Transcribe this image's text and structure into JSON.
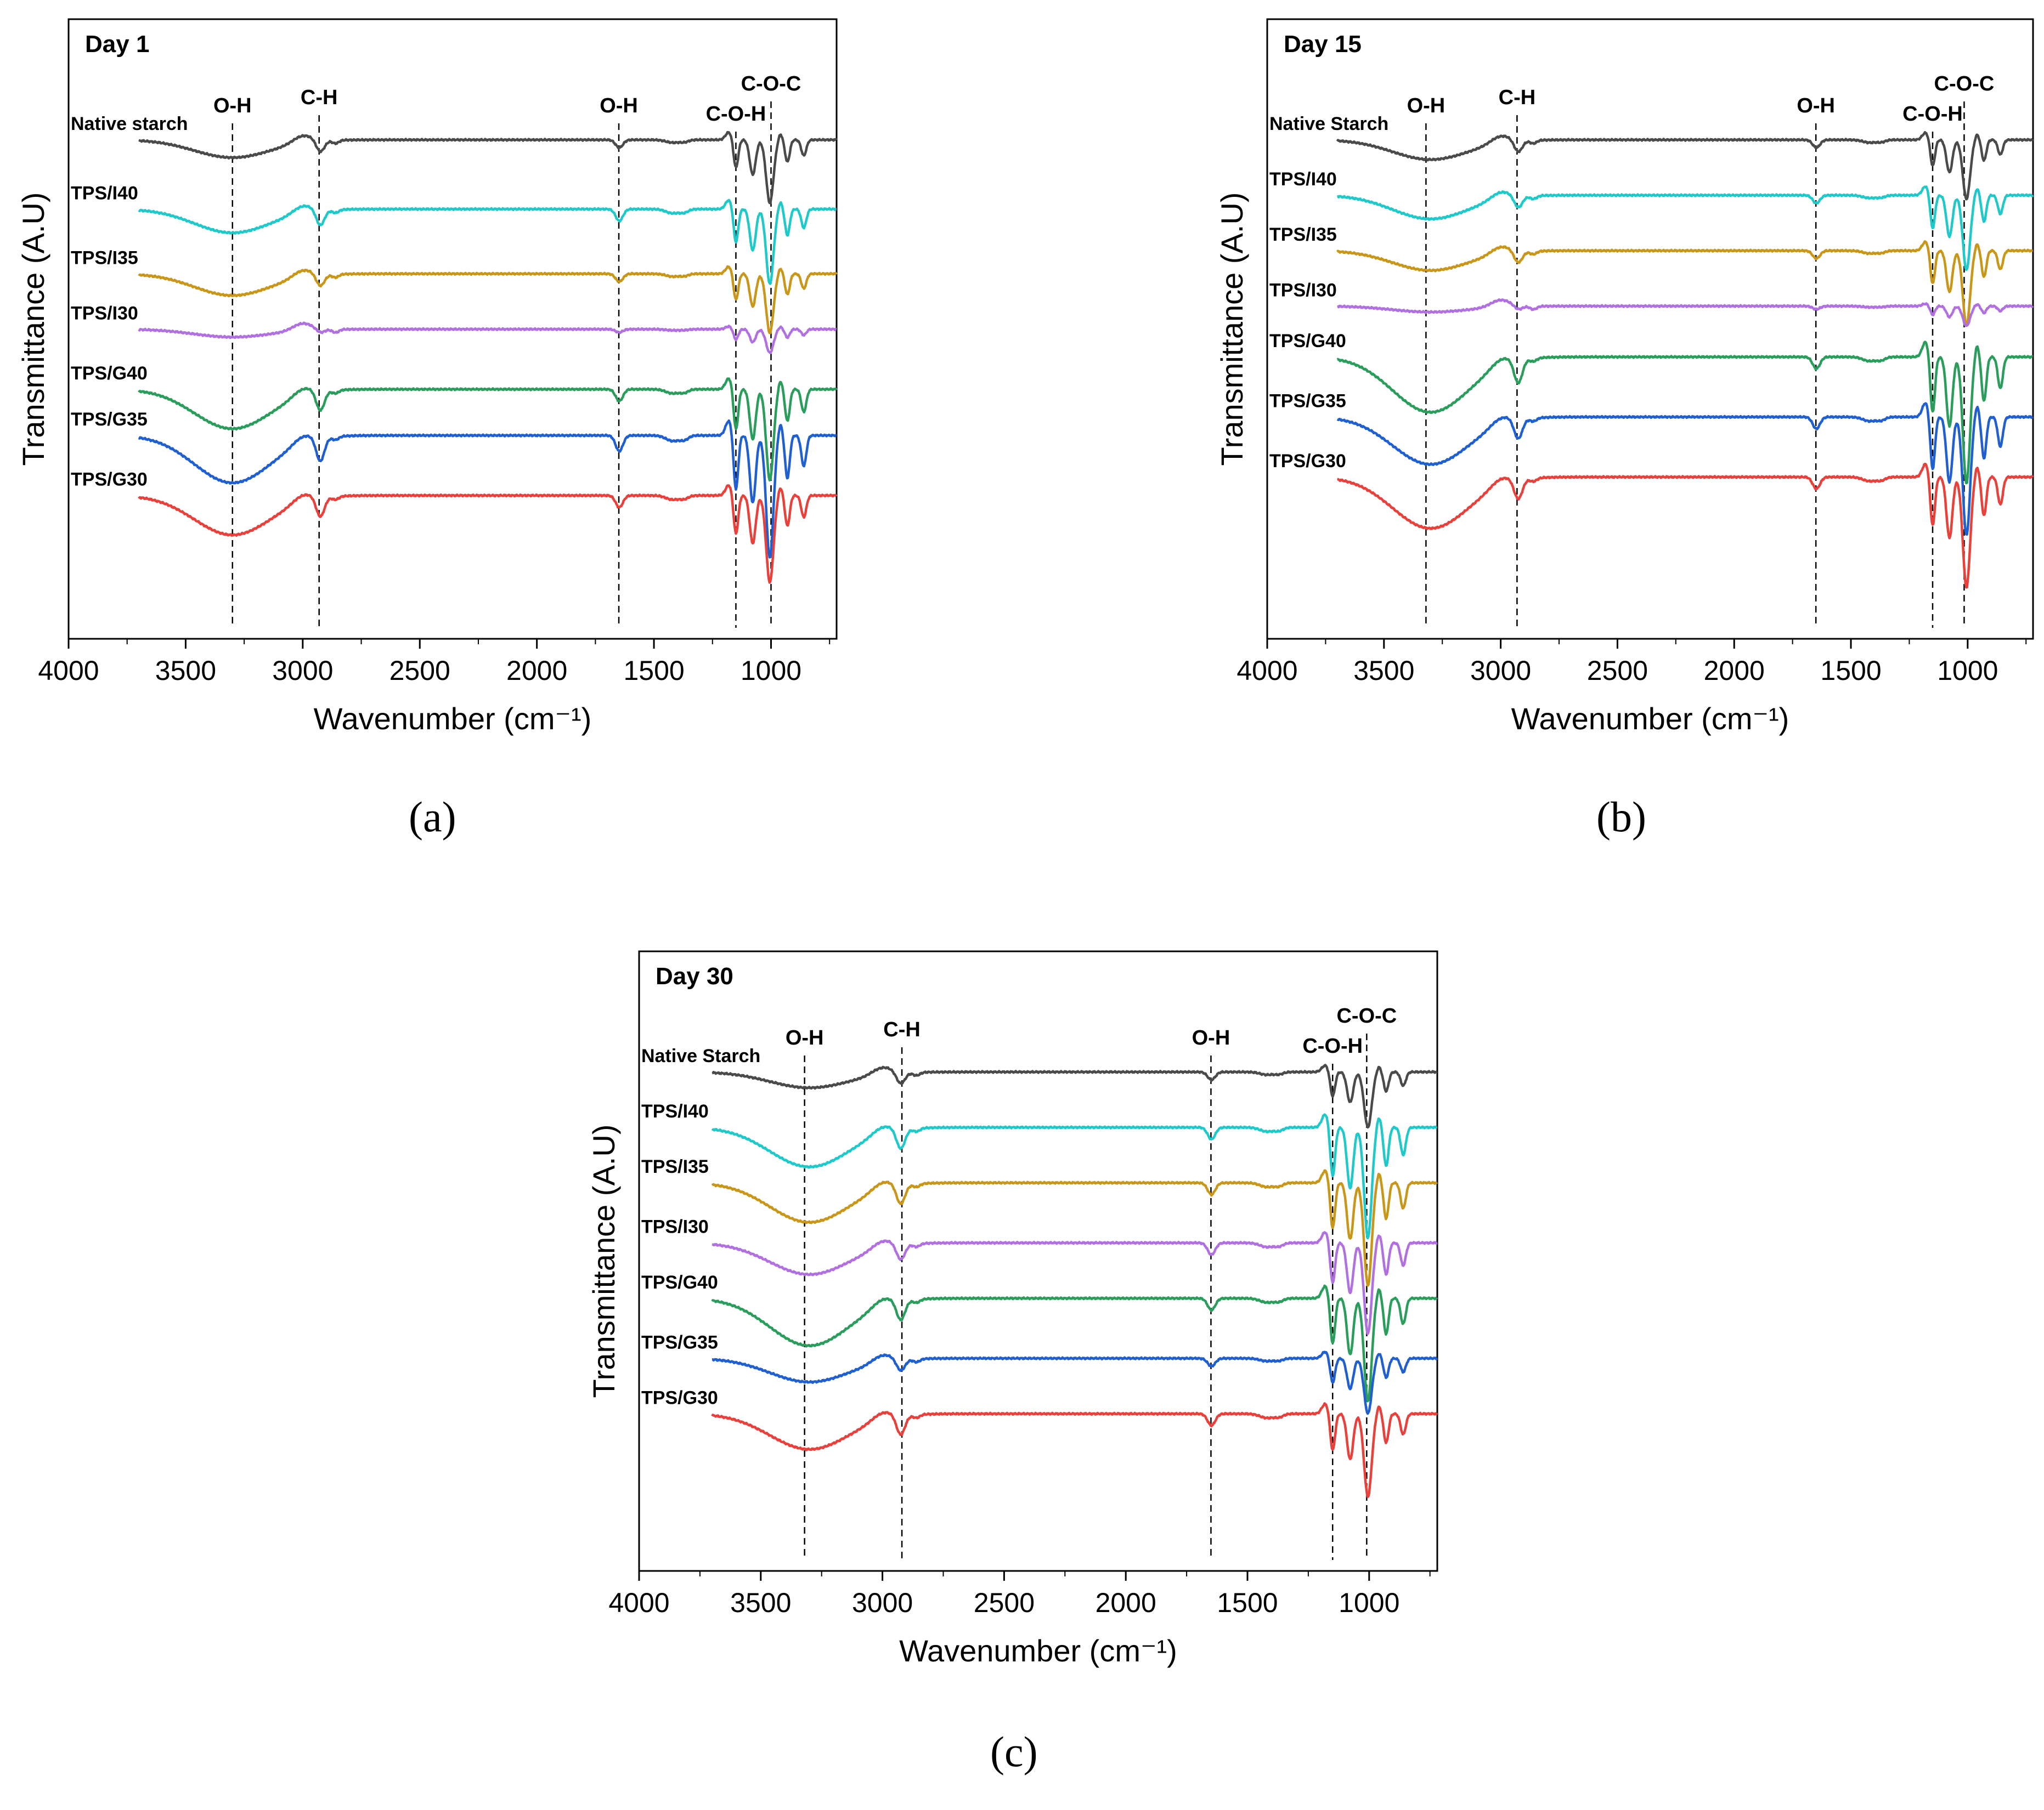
{
  "figure": {
    "panel_labels": [
      "(a)",
      "(b)",
      "(c)"
    ]
  },
  "chart_data": [
    {
      "type": "line",
      "title": "Day 1",
      "xlabel": "Wavenumber (cm⁻¹)",
      "ylabel": "Transmittance (A.U)",
      "xlim": [
        4000,
        720
      ],
      "xticks": [
        4000,
        3500,
        3000,
        2500,
        2000,
        1500,
        1000
      ],
      "annotations": [
        {
          "label": "O-H",
          "x": 3300
        },
        {
          "label": "C-H",
          "x": 2930
        },
        {
          "label": "O-H",
          "x": 1650
        },
        {
          "label": "C-O-H",
          "x": 1150
        },
        {
          "label": "C-O-C",
          "x": 1000
        }
      ],
      "series": [
        {
          "name": "Native starch",
          "color": "#4a4a4a",
          "offset": 0.0,
          "depths": {
            "oh": 0.45,
            "ch": 0.3,
            "oh2": 0.2,
            "fp": 1.6
          }
        },
        {
          "name": "TPS/I40",
          "color": "#1fc9c9",
          "offset": 1.5,
          "depths": {
            "oh": 0.6,
            "ch": 0.4,
            "oh2": 0.3,
            "fp": 1.9
          }
        },
        {
          "name": "TPS/I35",
          "color": "#c8971a",
          "offset": 2.9,
          "depths": {
            "oh": 0.55,
            "ch": 0.3,
            "oh2": 0.2,
            "fp": 1.5
          }
        },
        {
          "name": "TPS/I30",
          "color": "#b070e0",
          "offset": 4.1,
          "depths": {
            "oh": 0.2,
            "ch": 0.1,
            "oh2": 0.08,
            "fp": 0.6
          }
        },
        {
          "name": "TPS/G40",
          "color": "#2a9d5c",
          "offset": 5.4,
          "depths": {
            "oh": 1.0,
            "ch": 0.5,
            "oh2": 0.3,
            "fp": 2.3
          }
        },
        {
          "name": "TPS/G35",
          "color": "#1f5fd0",
          "offset": 6.4,
          "depths": {
            "oh": 1.2,
            "ch": 0.6,
            "oh2": 0.4,
            "fp": 3.1
          }
        },
        {
          "name": "TPS/G30",
          "color": "#e8413c",
          "offset": 7.7,
          "depths": {
            "oh": 1.0,
            "ch": 0.5,
            "oh2": 0.3,
            "fp": 2.2
          }
        }
      ]
    },
    {
      "type": "line",
      "title": "Day 15",
      "xlabel": "Wavenumber (cm⁻¹)",
      "ylabel": "Transmittance (A.U)",
      "xlim": [
        4000,
        720
      ],
      "xticks": [
        4000,
        3500,
        3000,
        2500,
        2000,
        1500,
        1000
      ],
      "annotations": [
        {
          "label": "O-H",
          "x": 3320
        },
        {
          "label": "C-H",
          "x": 2930
        },
        {
          "label": "O-H",
          "x": 1650
        },
        {
          "label": "C-O-H",
          "x": 1150
        },
        {
          "label": "C-O-C",
          "x": 1015
        }
      ],
      "series": [
        {
          "name": "Native Starch",
          "color": "#4a4a4a",
          "offset": 0.0,
          "depths": {
            "oh": 0.5,
            "ch": 0.3,
            "oh2": 0.2,
            "fp": 1.5
          }
        },
        {
          "name": "TPS/I40",
          "color": "#1fc9c9",
          "offset": 1.2,
          "depths": {
            "oh": 0.6,
            "ch": 0.3,
            "oh2": 0.2,
            "fp": 1.9
          }
        },
        {
          "name": "TPS/I35",
          "color": "#c8971a",
          "offset": 2.4,
          "depths": {
            "oh": 0.5,
            "ch": 0.3,
            "oh2": 0.2,
            "fp": 1.9
          }
        },
        {
          "name": "TPS/I30",
          "color": "#b070e0",
          "offset": 3.6,
          "depths": {
            "oh": 0.15,
            "ch": 0.1,
            "oh2": 0.08,
            "fp": 0.5
          }
        },
        {
          "name": "TPS/G40",
          "color": "#2a9d5c",
          "offset": 4.7,
          "depths": {
            "oh": 1.4,
            "ch": 0.6,
            "oh2": 0.3,
            "fp": 3.2
          }
        },
        {
          "name": "TPS/G35",
          "color": "#1f5fd0",
          "offset": 6.0,
          "depths": {
            "oh": 1.2,
            "ch": 0.5,
            "oh2": 0.3,
            "fp": 3.0
          }
        },
        {
          "name": "TPS/G30",
          "color": "#e8413c",
          "offset": 7.3,
          "depths": {
            "oh": 1.3,
            "ch": 0.5,
            "oh2": 0.3,
            "fp": 2.8
          }
        }
      ]
    },
    {
      "type": "line",
      "title": "Day 30",
      "xlabel": "Wavenumber (cm⁻¹)",
      "ylabel": "Transmittance (A.U)",
      "xlim": [
        4000,
        720
      ],
      "xticks": [
        4000,
        3500,
        3000,
        2500,
        2000,
        1500,
        1000
      ],
      "annotations": [
        {
          "label": "O-H",
          "x": 3320
        },
        {
          "label": "C-H",
          "x": 2920
        },
        {
          "label": "O-H",
          "x": 1650
        },
        {
          "label": "C-O-H",
          "x": 1150
        },
        {
          "label": "C-O-C",
          "x": 1010
        }
      ],
      "series": [
        {
          "name": "Native Starch",
          "color": "#4a4a4a",
          "offset": 0.0,
          "depths": {
            "oh": 0.4,
            "ch": 0.3,
            "oh2": 0.2,
            "fp": 1.4
          }
        },
        {
          "name": "TPS/I40",
          "color": "#1fc9c9",
          "offset": 1.2,
          "depths": {
            "oh": 1.0,
            "ch": 0.5,
            "oh2": 0.3,
            "fp": 2.8
          }
        },
        {
          "name": "TPS/I35",
          "color": "#c8971a",
          "offset": 2.4,
          "depths": {
            "oh": 1.0,
            "ch": 0.5,
            "oh2": 0.3,
            "fp": 2.6
          }
        },
        {
          "name": "TPS/I30",
          "color": "#b070e0",
          "offset": 3.7,
          "depths": {
            "oh": 0.8,
            "ch": 0.4,
            "oh2": 0.3,
            "fp": 2.3
          }
        },
        {
          "name": "TPS/G40",
          "color": "#2a9d5c",
          "offset": 4.9,
          "depths": {
            "oh": 1.2,
            "ch": 0.5,
            "oh2": 0.3,
            "fp": 2.6
          }
        },
        {
          "name": "TPS/G35",
          "color": "#1f5fd0",
          "offset": 6.2,
          "depths": {
            "oh": 0.6,
            "ch": 0.3,
            "oh2": 0.2,
            "fp": 1.4
          }
        },
        {
          "name": "TPS/G30",
          "color": "#e8413c",
          "offset": 7.4,
          "depths": {
            "oh": 0.9,
            "ch": 0.5,
            "oh2": 0.3,
            "fp": 2.1
          }
        }
      ]
    }
  ]
}
